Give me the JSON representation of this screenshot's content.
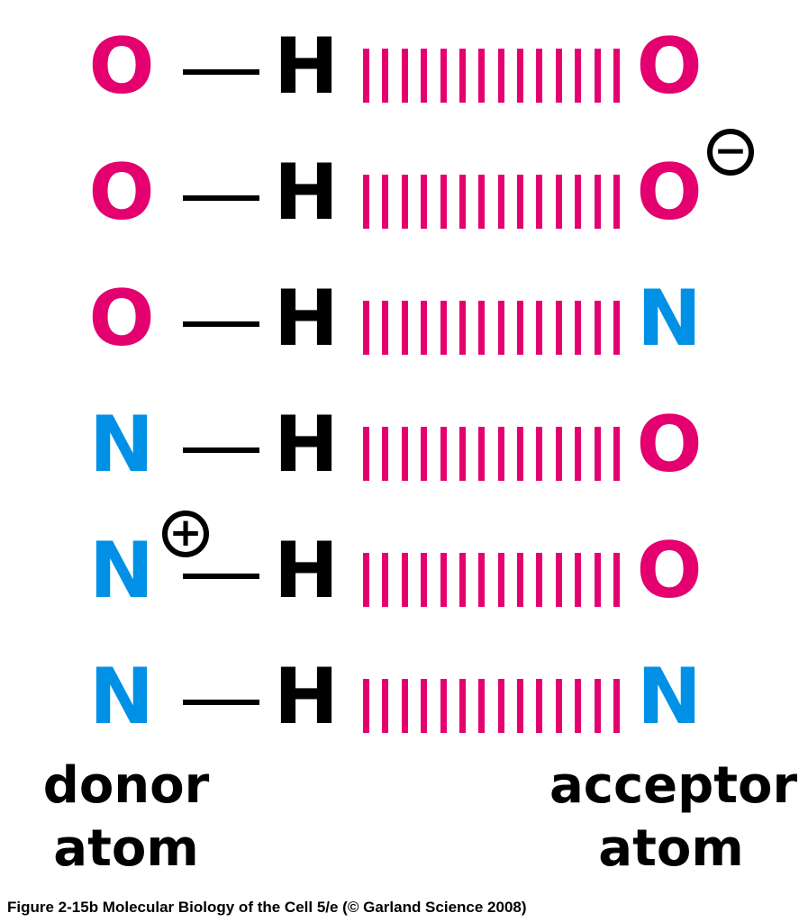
{
  "colors": {
    "oxygen": "#e4006f",
    "nitrogen": "#0091e6",
    "hydrogen": "#000000",
    "hydrogen_bond": "#e4006f"
  },
  "rows": [
    {
      "donor": "O",
      "donor_element": "oxygen",
      "hydrogen": "H",
      "acceptor": "O",
      "acceptor_element": "oxygen"
    },
    {
      "donor": "O",
      "donor_element": "oxygen",
      "hydrogen": "H",
      "acceptor": "O",
      "acceptor_element": "oxygen",
      "acceptor_charge": "−"
    },
    {
      "donor": "O",
      "donor_element": "oxygen",
      "hydrogen": "H",
      "acceptor": "N",
      "acceptor_element": "nitrogen"
    },
    {
      "donor": "N",
      "donor_element": "nitrogen",
      "hydrogen": "H",
      "acceptor": "O",
      "acceptor_element": "oxygen"
    },
    {
      "donor": "N",
      "donor_element": "nitrogen",
      "hydrogen": "H",
      "acceptor": "O",
      "acceptor_element": "oxygen",
      "donor_charge": "+"
    },
    {
      "donor": "N",
      "donor_element": "nitrogen",
      "hydrogen": "H",
      "acceptor": "N",
      "acceptor_element": "nitrogen"
    }
  ],
  "labels": {
    "donor_line1": "donor",
    "donor_line2": "atom",
    "acceptor_line1": "acceptor",
    "acceptor_line2": "atom"
  },
  "credit": "Figure 2-15b  Molecular Biology of the Cell 5/e (© Garland Science 2008)"
}
